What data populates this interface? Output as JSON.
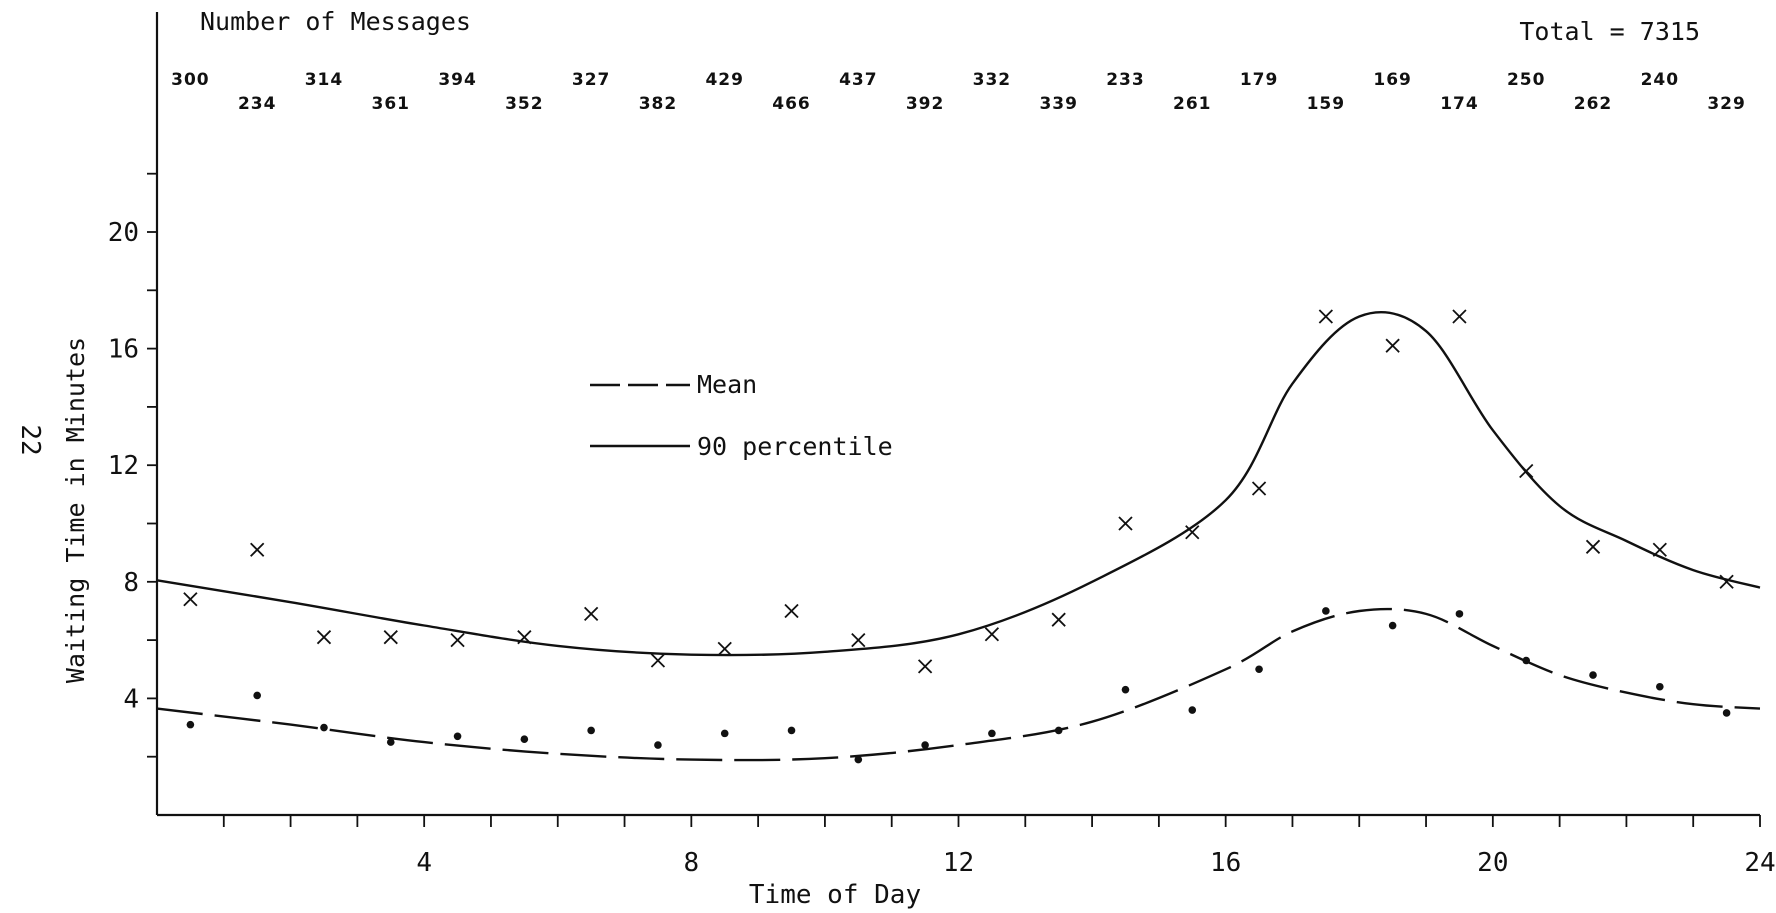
{
  "page_number": "22",
  "chart_data": {
    "type": "scatter",
    "title": "",
    "xlabel": "Time of Day",
    "ylabel": "Waiting Time in Minutes",
    "xlim": [
      0,
      24
    ],
    "ylim": [
      0,
      20
    ],
    "x_ticks": [
      4,
      8,
      12,
      16,
      20,
      24
    ],
    "y_ticks": [
      4,
      8,
      12,
      16,
      20
    ],
    "grid": false,
    "legend": {
      "position": "center-left",
      "entries": [
        "Mean",
        "90 percentile"
      ]
    },
    "messages_header": "Number of Messages",
    "total_label": "Total = 7315",
    "message_counts": [
      300,
      234,
      314,
      361,
      394,
      352,
      327,
      382,
      429,
      466,
      437,
      392,
      332,
      339,
      233,
      261,
      179,
      159,
      169,
      174,
      250,
      262,
      240,
      329
    ],
    "series": [
      {
        "name": "90 percentile",
        "marker": "x",
        "line_style": "solid",
        "points": [
          [
            0.5,
            7.4
          ],
          [
            1.5,
            9.1
          ],
          [
            2.5,
            6.1
          ],
          [
            3.5,
            6.1
          ],
          [
            4.5,
            6.0
          ],
          [
            5.5,
            6.1
          ],
          [
            6.5,
            6.9
          ],
          [
            7.5,
            5.3
          ],
          [
            8.5,
            5.7
          ],
          [
            9.5,
            7.0
          ],
          [
            10.5,
            6.0
          ],
          [
            11.5,
            5.1
          ],
          [
            12.5,
            6.2
          ],
          [
            13.5,
            6.7
          ],
          [
            14.5,
            10.0
          ],
          [
            15.5,
            9.7
          ],
          [
            16.5,
            11.2
          ],
          [
            17.5,
            17.1
          ],
          [
            18.5,
            16.1
          ],
          [
            19.5,
            17.1
          ],
          [
            20.5,
            11.8
          ],
          [
            21.5,
            9.2
          ],
          [
            22.5,
            9.1
          ],
          [
            23.5,
            8.0
          ]
        ],
        "curve": [
          [
            0,
            8.05
          ],
          [
            2,
            7.3
          ],
          [
            4,
            6.5
          ],
          [
            6,
            5.8
          ],
          [
            8,
            5.5
          ],
          [
            10,
            5.6
          ],
          [
            12,
            6.2
          ],
          [
            14,
            8.0
          ],
          [
            16,
            10.8
          ],
          [
            17,
            14.8
          ],
          [
            18,
            17.1
          ],
          [
            19,
            16.6
          ],
          [
            20,
            13.2
          ],
          [
            21,
            10.6
          ],
          [
            22,
            9.4
          ],
          [
            23,
            8.4
          ],
          [
            24,
            7.8
          ]
        ]
      },
      {
        "name": "Mean",
        "marker": "dot",
        "line_style": "dashed",
        "points": [
          [
            0.5,
            3.1
          ],
          [
            1.5,
            4.1
          ],
          [
            2.5,
            3.0
          ],
          [
            3.5,
            2.5
          ],
          [
            4.5,
            2.7
          ],
          [
            5.5,
            2.6
          ],
          [
            6.5,
            2.9
          ],
          [
            7.5,
            2.4
          ],
          [
            8.5,
            2.8
          ],
          [
            9.5,
            2.9
          ],
          [
            10.5,
            1.9
          ],
          [
            11.5,
            2.4
          ],
          [
            12.5,
            2.8
          ],
          [
            13.5,
            2.9
          ],
          [
            14.5,
            4.3
          ],
          [
            15.5,
            3.6
          ],
          [
            16.5,
            5.0
          ],
          [
            17.5,
            7.0
          ],
          [
            18.5,
            6.5
          ],
          [
            19.5,
            6.9
          ],
          [
            20.5,
            5.3
          ],
          [
            21.5,
            4.8
          ],
          [
            22.5,
            4.4
          ],
          [
            23.5,
            3.5
          ]
        ],
        "curve": [
          [
            0,
            3.65
          ],
          [
            2,
            3.1
          ],
          [
            4,
            2.5
          ],
          [
            6,
            2.1
          ],
          [
            8,
            1.9
          ],
          [
            10,
            1.95
          ],
          [
            12,
            2.4
          ],
          [
            14,
            3.2
          ],
          [
            16,
            5.0
          ],
          [
            17,
            6.3
          ],
          [
            18,
            7.0
          ],
          [
            19,
            6.9
          ],
          [
            20,
            5.8
          ],
          [
            21,
            4.8
          ],
          [
            22,
            4.2
          ],
          [
            23,
            3.8
          ],
          [
            24,
            3.65
          ]
        ]
      }
    ]
  }
}
